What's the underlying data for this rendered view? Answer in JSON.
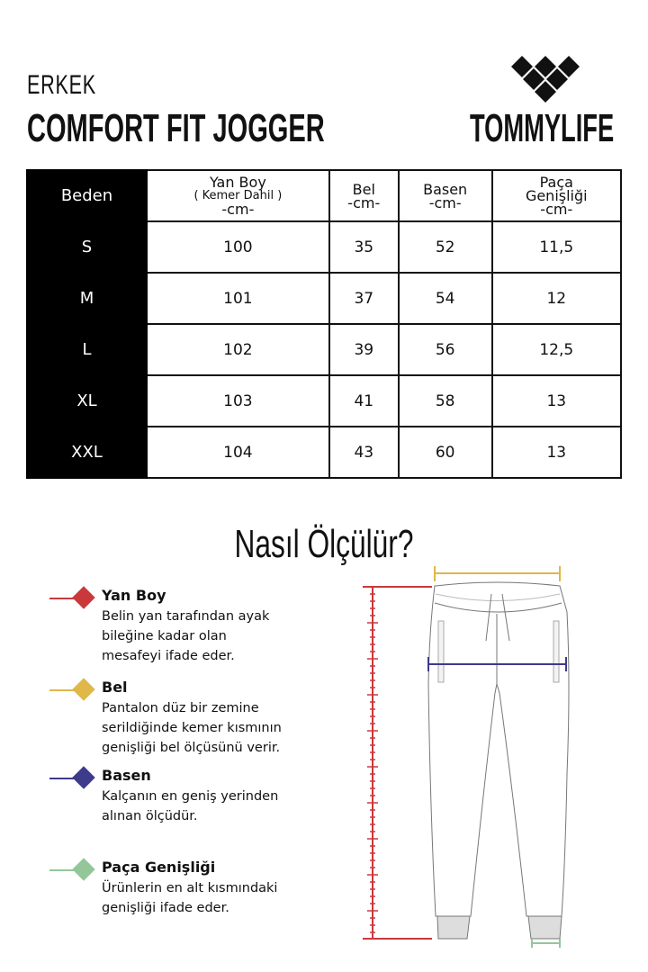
{
  "header": {
    "gender": "ERKEK",
    "title": "COMFORT FIT JOGGER",
    "brand": "TOMMYLIFE"
  },
  "table": {
    "headers": [
      {
        "l1": "Beden"
      },
      {
        "l1": "Yan Boy",
        "l2": "( Kemer Dahil )",
        "l3": "-cm-"
      },
      {
        "l1": "Bel",
        "l2": "-cm-"
      },
      {
        "l1": "Basen",
        "l2": "-cm-"
      },
      {
        "l1": "Paça",
        "l2": "Genişliği",
        "l3": "-cm-"
      }
    ],
    "rows": [
      [
        "S",
        "100",
        "35",
        "52",
        "11,5"
      ],
      [
        "M",
        "101",
        "37",
        "54",
        "12"
      ],
      [
        "L",
        "102",
        "39",
        "56",
        "12,5"
      ],
      [
        "XL",
        "103",
        "41",
        "58",
        "13"
      ],
      [
        "XXL",
        "104",
        "43",
        "60",
        "13"
      ]
    ]
  },
  "howto": {
    "title": "Nasıl Ölçülür?",
    "items": [
      {
        "title": "Yan Boy",
        "desc": "Belin yan tarafından ayak bileğine kadar olan mesafeyi ifade eder.",
        "color": "#c9393c"
      },
      {
        "title": "Bel",
        "desc": "Pantalon düz bir zemine serildiğinde kemer kısmının genişliği bel ölçüsünü verir.",
        "color": "#e0b84a"
      },
      {
        "title": "Basen",
        "desc": "Kalçanın en geniş yerinden alınan ölçüdür.",
        "color": "#3e3a8c"
      },
      {
        "title": "Paça Genişliği",
        "desc": "Ürünlerin en alt kısmındaki genişliği ifade eder.",
        "color": "#93c79a"
      }
    ]
  }
}
